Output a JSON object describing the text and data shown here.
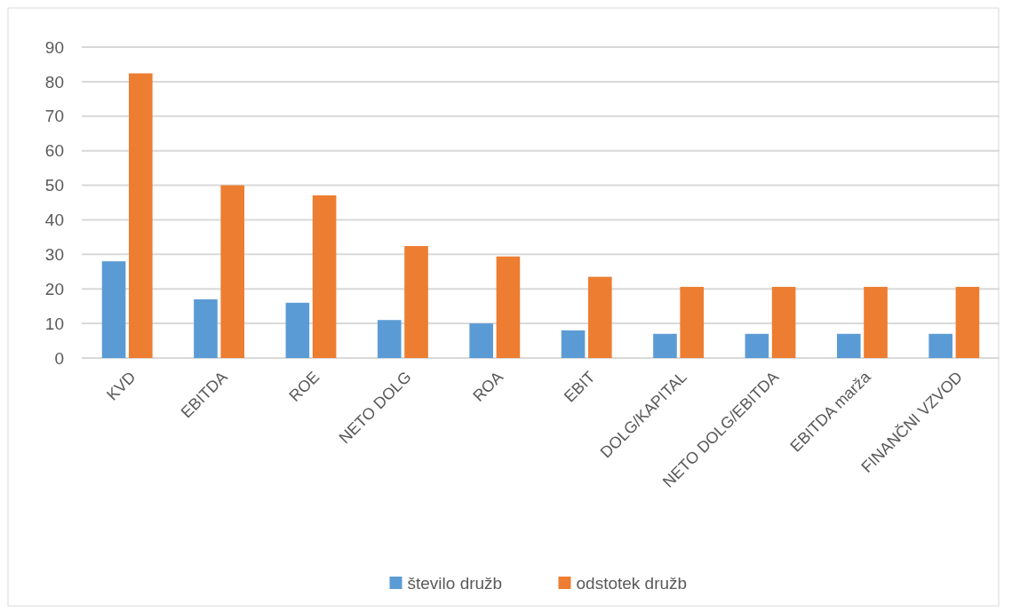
{
  "chart_data": {
    "type": "bar",
    "categories": [
      "KVD",
      "EBITDA",
      "ROE",
      "NETO DOLG",
      "ROA",
      "EBIT",
      "DOLG/KAPITAL",
      "NETO DOLG/EBITDA",
      "EBITDA marža",
      "FINANČNI VZVOD"
    ],
    "series": [
      {
        "name": "število družb",
        "color": "#5b9bd5",
        "values": [
          28,
          17,
          16,
          11,
          10,
          8,
          7,
          7,
          7,
          7
        ]
      },
      {
        "name": "odstotek družb",
        "color": "#ed7d31",
        "values": [
          82.4,
          50,
          47.1,
          32.4,
          29.4,
          23.5,
          20.6,
          20.6,
          20.6,
          20.6
        ]
      }
    ],
    "ylim": [
      0,
      90
    ],
    "yticks": [
      0,
      10,
      20,
      30,
      40,
      50,
      60,
      70,
      80,
      90
    ],
    "grid": "y",
    "legend": "bottom"
  }
}
